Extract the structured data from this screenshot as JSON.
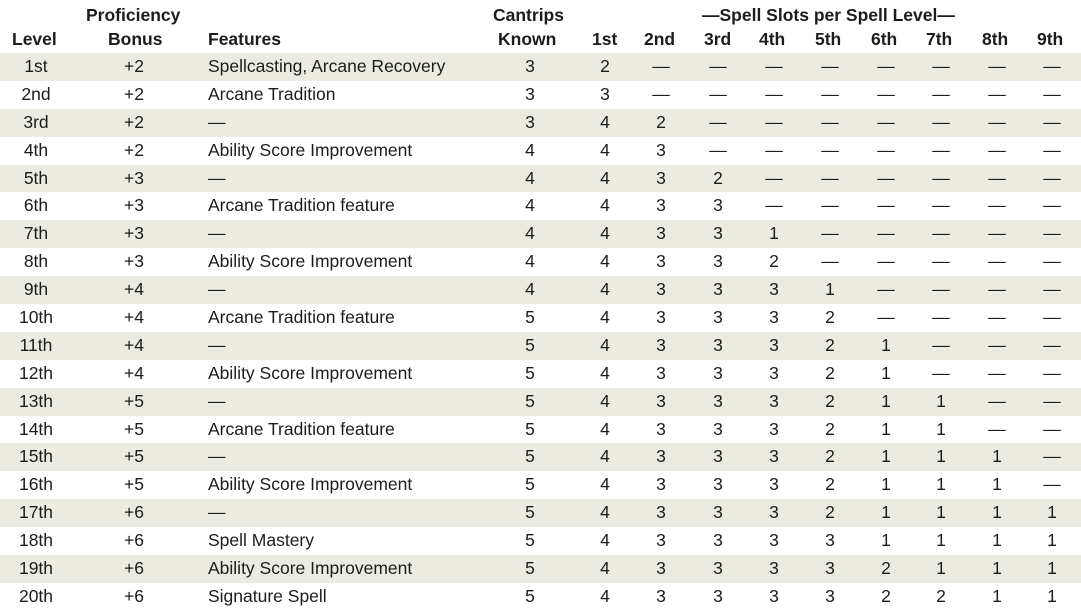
{
  "header": {
    "row1": {
      "proficiency": "Proficiency",
      "cantrips": "Cantrips",
      "spell_slots": "—Spell Slots per Spell Level—"
    },
    "row2": {
      "level": "Level",
      "bonus": "Bonus",
      "features": "Features",
      "known": "Known",
      "s1": "1st",
      "s2": "2nd",
      "s3": "3rd",
      "s4": "4th",
      "s5": "5th",
      "s6": "6th",
      "s7": "7th",
      "s8": "8th",
      "s9": "9th"
    }
  },
  "rows": [
    {
      "level": "1st",
      "bonus": "+2",
      "features": "Spellcasting, Arcane Recovery",
      "cantrips": "3",
      "slots": [
        "2",
        "—",
        "—",
        "—",
        "—",
        "—",
        "—",
        "—",
        "—"
      ]
    },
    {
      "level": "2nd",
      "bonus": "+2",
      "features": "Arcane Tradition",
      "cantrips": "3",
      "slots": [
        "3",
        "—",
        "—",
        "—",
        "—",
        "—",
        "—",
        "—",
        "—"
      ]
    },
    {
      "level": "3rd",
      "bonus": "+2",
      "features": "—",
      "cantrips": "3",
      "slots": [
        "4",
        "2",
        "—",
        "—",
        "—",
        "—",
        "—",
        "—",
        "—"
      ]
    },
    {
      "level": "4th",
      "bonus": "+2",
      "features": "Ability Score Improvement",
      "cantrips": "4",
      "slots": [
        "4",
        "3",
        "—",
        "—",
        "—",
        "—",
        "—",
        "—",
        "—"
      ]
    },
    {
      "level": "5th",
      "bonus": "+3",
      "features": "—",
      "cantrips": "4",
      "slots": [
        "4",
        "3",
        "2",
        "—",
        "—",
        "—",
        "—",
        "—",
        "—"
      ]
    },
    {
      "level": "6th",
      "bonus": "+3",
      "features": "Arcane Tradition feature",
      "cantrips": "4",
      "slots": [
        "4",
        "3",
        "3",
        "—",
        "—",
        "—",
        "—",
        "—",
        "—"
      ]
    },
    {
      "level": "7th",
      "bonus": "+3",
      "features": "—",
      "cantrips": "4",
      "slots": [
        "4",
        "3",
        "3",
        "1",
        "—",
        "—",
        "—",
        "—",
        "—"
      ]
    },
    {
      "level": "8th",
      "bonus": "+3",
      "features": "Ability Score Improvement",
      "cantrips": "4",
      "slots": [
        "4",
        "3",
        "3",
        "2",
        "—",
        "—",
        "—",
        "—",
        "—"
      ]
    },
    {
      "level": "9th",
      "bonus": "+4",
      "features": "—",
      "cantrips": "4",
      "slots": [
        "4",
        "3",
        "3",
        "3",
        "1",
        "—",
        "—",
        "—",
        "—"
      ]
    },
    {
      "level": "10th",
      "bonus": "+4",
      "features": "Arcane Tradition feature",
      "cantrips": "5",
      "slots": [
        "4",
        "3",
        "3",
        "3",
        "2",
        "—",
        "—",
        "—",
        "—"
      ]
    },
    {
      "level": "11th",
      "bonus": "+4",
      "features": "—",
      "cantrips": "5",
      "slots": [
        "4",
        "3",
        "3",
        "3",
        "2",
        "1",
        "—",
        "—",
        "—"
      ]
    },
    {
      "level": "12th",
      "bonus": "+4",
      "features": "Ability Score Improvement",
      "cantrips": "5",
      "slots": [
        "4",
        "3",
        "3",
        "3",
        "2",
        "1",
        "—",
        "—",
        "—"
      ]
    },
    {
      "level": "13th",
      "bonus": "+5",
      "features": "—",
      "cantrips": "5",
      "slots": [
        "4",
        "3",
        "3",
        "3",
        "2",
        "1",
        "1",
        "—",
        "—"
      ]
    },
    {
      "level": "14th",
      "bonus": "+5",
      "features": "Arcane Tradition feature",
      "cantrips": "5",
      "slots": [
        "4",
        "3",
        "3",
        "3",
        "2",
        "1",
        "1",
        "—",
        "—"
      ]
    },
    {
      "level": "15th",
      "bonus": "+5",
      "features": "—",
      "cantrips": "5",
      "slots": [
        "4",
        "3",
        "3",
        "3",
        "2",
        "1",
        "1",
        "1",
        "—"
      ]
    },
    {
      "level": "16th",
      "bonus": "+5",
      "features": "Ability Score Improvement",
      "cantrips": "5",
      "slots": [
        "4",
        "3",
        "3",
        "3",
        "2",
        "1",
        "1",
        "1",
        "—"
      ]
    },
    {
      "level": "17th",
      "bonus": "+6",
      "features": "—",
      "cantrips": "5",
      "slots": [
        "4",
        "3",
        "3",
        "3",
        "2",
        "1",
        "1",
        "1",
        "1"
      ]
    },
    {
      "level": "18th",
      "bonus": "+6",
      "features": "Spell Mastery",
      "cantrips": "5",
      "slots": [
        "4",
        "3",
        "3",
        "3",
        "3",
        "1",
        "1",
        "1",
        "1"
      ]
    },
    {
      "level": "19th",
      "bonus": "+6",
      "features": "Ability Score Improvement",
      "cantrips": "5",
      "slots": [
        "4",
        "3",
        "3",
        "3",
        "3",
        "2",
        "1",
        "1",
        "1"
      ]
    },
    {
      "level": "20th",
      "bonus": "+6",
      "features": "Signature Spell",
      "cantrips": "5",
      "slots": [
        "4",
        "3",
        "3",
        "3",
        "3",
        "2",
        "2",
        "1",
        "1"
      ]
    }
  ]
}
